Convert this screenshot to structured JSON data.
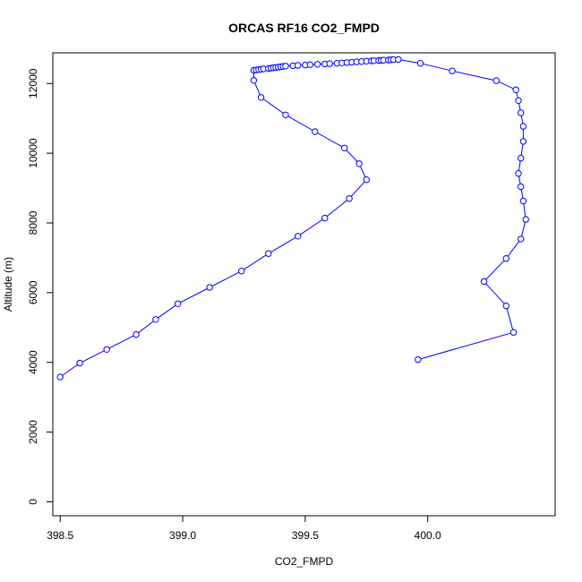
{
  "chart_data": {
    "type": "scatter",
    "title": "ORCAS RF16 CO2_FMPD",
    "xlabel": "CO2_FMPD",
    "ylabel": "Altitude (m)",
    "xlim": [
      398.47,
      400.52
    ],
    "ylim": [
      -400,
      12880
    ],
    "x_ticks": [
      398.5,
      399.0,
      399.5,
      400.0
    ],
    "x_tick_labels": [
      "398.5",
      "399.0",
      "399.5",
      "400.0"
    ],
    "y_ticks": [
      0,
      2000,
      4000,
      6000,
      8000,
      10000,
      12000
    ],
    "y_tick_labels": [
      "0",
      "2000",
      "4000",
      "6000",
      "8000",
      "10000",
      "12000"
    ],
    "lines": true,
    "markers": "open-circle",
    "series_color": "#0000ff",
    "x": [
      398.5,
      398.58,
      398.69,
      398.81,
      398.89,
      398.98,
      399.11,
      399.24,
      399.35,
      399.47,
      399.58,
      399.68,
      399.75,
      399.72,
      399.66,
      399.54,
      399.42,
      399.32,
      399.29,
      399.29,
      399.3,
      399.31,
      399.32,
      399.33,
      399.35,
      399.36,
      399.37,
      399.38,
      399.39,
      399.4,
      399.41,
      399.42,
      399.45,
      399.47,
      399.5,
      399.52,
      399.55,
      399.58,
      399.6,
      399.63,
      399.65,
      399.67,
      399.69,
      399.71,
      399.73,
      399.75,
      399.77,
      399.78,
      399.8,
      399.81,
      399.82,
      399.84,
      399.85,
      399.86,
      399.88,
      399.97,
      400.1,
      400.28,
      400.36,
      400.37,
      400.38,
      400.39,
      400.39,
      400.38,
      400.37,
      400.38,
      400.39,
      400.4,
      400.38,
      400.32,
      400.23,
      400.32,
      400.35,
      399.96
    ],
    "y": [
      3580,
      3980,
      4370,
      4800,
      5230,
      5680,
      6150,
      6620,
      7120,
      7620,
      8140,
      8700,
      9240,
      9700,
      10150,
      10620,
      11100,
      11600,
      12090,
      12380,
      12390,
      12400,
      12410,
      12420,
      12430,
      12440,
      12450,
      12460,
      12470,
      12480,
      12490,
      12500,
      12510,
      12520,
      12530,
      12540,
      12550,
      12560,
      12570,
      12580,
      12590,
      12600,
      12610,
      12620,
      12630,
      12640,
      12650,
      12655,
      12660,
      12665,
      12670,
      12675,
      12680,
      12685,
      12690,
      12580,
      12360,
      12080,
      11820,
      11510,
      11160,
      10770,
      10340,
      9860,
      9420,
      9040,
      8630,
      8100,
      7540,
      6980,
      6320,
      5620,
      4860,
      4080
    ]
  }
}
